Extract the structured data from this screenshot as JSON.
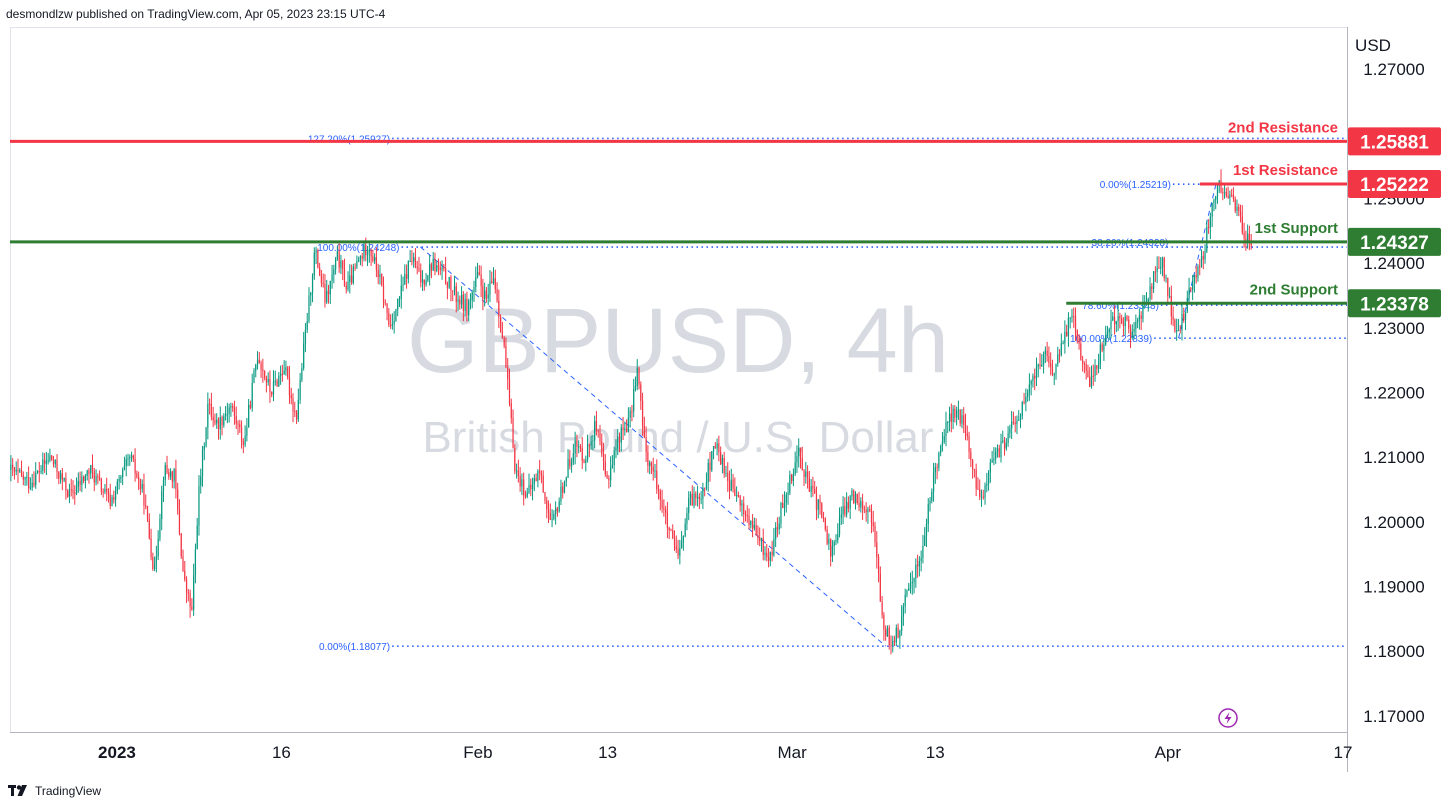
{
  "header": {
    "published": "desmondlzw published on TradingView.com, Apr 05, 2023 23:15 UTC-4"
  },
  "footer": {
    "brand": "TradingView"
  },
  "colors": {
    "up": "#26a69a",
    "up_body": "#089981",
    "down": "#f23645",
    "resistance": "#f23645",
    "support": "#2e7d32",
    "fib": "#2962ff",
    "watermark": "#d1d4dc"
  },
  "chart_data": {
    "type": "candlestick",
    "symbol": "GBPUSD",
    "interval": "4h",
    "watermark_main": "GBPUSD, 4h",
    "watermark_sub": "British Pound / U.S. Dollar",
    "currency": "USD",
    "ylim": [
      1.1675,
      1.2765
    ],
    "y_ticks": [
      {
        "v": 1.27,
        "label": "1.27000"
      },
      {
        "v": 1.26,
        "label": "1.26000"
      },
      {
        "v": 1.25,
        "label": "1.25000"
      },
      {
        "v": 1.24,
        "label": "1.24000"
      },
      {
        "v": 1.23,
        "label": "1.23000"
      },
      {
        "v": 1.22,
        "label": "1.22000"
      },
      {
        "v": 1.21,
        "label": "1.21000"
      },
      {
        "v": 1.2,
        "label": "1.20000"
      },
      {
        "v": 1.19,
        "label": "1.19000"
      },
      {
        "v": 1.18,
        "label": "1.18000"
      },
      {
        "v": 1.17,
        "label": "1.17000"
      }
    ],
    "x_ticks": [
      {
        "label": "2023",
        "pos": 0.08,
        "bold": true
      },
      {
        "label": "16",
        "pos": 0.203
      },
      {
        "label": "Feb",
        "pos": 0.35
      },
      {
        "label": "13",
        "pos": 0.447
      },
      {
        "label": "Mar",
        "pos": 0.585
      },
      {
        "label": "13",
        "pos": 0.692
      },
      {
        "label": "Apr",
        "pos": 0.866
      },
      {
        "label": "17",
        "pos": 0.997
      }
    ],
    "levels": [
      {
        "name": "2nd Resistance",
        "value": 1.25881,
        "tag": "1.25881",
        "type": "resistance",
        "start": 0.0
      },
      {
        "name": "1st Resistance",
        "value": 1.25222,
        "tag": "1.25222",
        "type": "resistance",
        "start": 0.89
      },
      {
        "name": "1st Support",
        "value": 1.24327,
        "tag": "1.24327",
        "type": "support",
        "start": 0.0
      },
      {
        "name": "2nd Support",
        "value": 1.23378,
        "tag": "1.23378",
        "type": "support",
        "start": 0.79
      }
    ],
    "fib_levels": [
      {
        "label": "127.20%(1.25927)",
        "value": 1.25927,
        "start": 0.223
      },
      {
        "label": "100.00%(1.24248)",
        "value": 1.24248,
        "start": 0.23
      },
      {
        "label": "0.00%(1.18077)",
        "value": 1.18077,
        "start": 0.223
      },
      {
        "label": "0.00%(1.25219)",
        "value": 1.25219,
        "start": 0.807
      },
      {
        "label": "38.20%(1.24328)",
        "value": 1.24328,
        "start": 0.805
      },
      {
        "label": "78.60%(1.23348)",
        "value": 1.23348,
        "start": 0.798
      },
      {
        "label": "100.00%(1.22839)",
        "value": 1.22839,
        "start": 0.793
      }
    ],
    "fib_trends": [
      {
        "from": [
          0.307,
          1.24248
        ],
        "to": [
          0.655,
          1.18077
        ]
      },
      {
        "from": [
          0.874,
          1.22839
        ],
        "to": [
          0.902,
          1.25219
        ]
      }
    ],
    "path": [
      [
        0.0,
        1.208
      ],
      [
        0.015,
        1.206
      ],
      [
        0.03,
        1.21
      ],
      [
        0.045,
        1.204
      ],
      [
        0.06,
        1.208
      ],
      [
        0.075,
        1.203
      ],
      [
        0.09,
        1.21
      ],
      [
        0.1,
        1.204
      ],
      [
        0.108,
        1.192
      ],
      [
        0.115,
        1.208
      ],
      [
        0.123,
        1.207
      ],
      [
        0.13,
        1.191
      ],
      [
        0.136,
        1.186
      ],
      [
        0.141,
        1.204
      ],
      [
        0.148,
        1.218
      ],
      [
        0.155,
        1.215
      ],
      [
        0.165,
        1.218
      ],
      [
        0.175,
        1.212
      ],
      [
        0.185,
        1.226
      ],
      [
        0.195,
        1.22
      ],
      [
        0.205,
        1.224
      ],
      [
        0.214,
        1.216
      ],
      [
        0.222,
        1.231
      ],
      [
        0.228,
        1.242
      ],
      [
        0.236,
        1.234
      ],
      [
        0.245,
        1.241
      ],
      [
        0.252,
        1.236
      ],
      [
        0.26,
        1.24
      ],
      [
        0.268,
        1.243
      ],
      [
        0.276,
        1.238
      ],
      [
        0.284,
        1.23
      ],
      [
        0.292,
        1.235
      ],
      [
        0.3,
        1.241
      ],
      [
        0.308,
        1.237
      ],
      [
        0.316,
        1.24
      ],
      [
        0.325,
        1.238
      ],
      [
        0.333,
        1.235
      ],
      [
        0.342,
        1.233
      ],
      [
        0.35,
        1.238
      ],
      [
        0.356,
        1.234
      ],
      [
        0.362,
        1.238
      ],
      [
        0.37,
        1.226
      ],
      [
        0.378,
        1.208
      ],
      [
        0.387,
        1.204
      ],
      [
        0.396,
        1.208
      ],
      [
        0.405,
        1.199
      ],
      [
        0.414,
        1.206
      ],
      [
        0.422,
        1.212
      ],
      [
        0.43,
        1.21
      ],
      [
        0.438,
        1.215
      ],
      [
        0.446,
        1.206
      ],
      [
        0.455,
        1.213
      ],
      [
        0.464,
        1.216
      ],
      [
        0.469,
        1.224
      ],
      [
        0.475,
        1.211
      ],
      [
        0.484,
        1.206
      ],
      [
        0.492,
        1.199
      ],
      [
        0.5,
        1.194
      ],
      [
        0.508,
        1.203
      ],
      [
        0.518,
        1.205
      ],
      [
        0.528,
        1.212
      ],
      [
        0.538,
        1.206
      ],
      [
        0.548,
        1.202
      ],
      [
        0.558,
        1.198
      ],
      [
        0.568,
        1.194
      ],
      [
        0.578,
        1.203
      ],
      [
        0.59,
        1.211
      ],
      [
        0.598,
        1.205
      ],
      [
        0.606,
        1.202
      ],
      [
        0.614,
        1.195
      ],
      [
        0.622,
        1.201
      ],
      [
        0.63,
        1.204
      ],
      [
        0.638,
        1.203
      ],
      [
        0.646,
        1.2
      ],
      [
        0.652,
        1.185
      ],
      [
        0.658,
        1.1815
      ],
      [
        0.665,
        1.183
      ],
      [
        0.672,
        1.19
      ],
      [
        0.682,
        1.195
      ],
      [
        0.69,
        1.206
      ],
      [
        0.698,
        1.214
      ],
      [
        0.706,
        1.217
      ],
      [
        0.714,
        1.215
      ],
      [
        0.72,
        1.208
      ],
      [
        0.726,
        1.203
      ],
      [
        0.732,
        1.208
      ],
      [
        0.74,
        1.211
      ],
      [
        0.748,
        1.214
      ],
      [
        0.756,
        1.217
      ],
      [
        0.765,
        1.222
      ],
      [
        0.773,
        1.226
      ],
      [
        0.78,
        1.223
      ],
      [
        0.787,
        1.227
      ],
      [
        0.794,
        1.233
      ],
      [
        0.8,
        1.227
      ],
      [
        0.807,
        1.221
      ],
      [
        0.815,
        1.226
      ],
      [
        0.823,
        1.231
      ],
      [
        0.831,
        1.232
      ],
      [
        0.838,
        1.229
      ],
      [
        0.846,
        1.232
      ],
      [
        0.854,
        1.237
      ],
      [
        0.862,
        1.24
      ],
      [
        0.868,
        1.233
      ],
      [
        0.873,
        1.2285
      ],
      [
        0.879,
        1.233
      ],
      [
        0.886,
        1.238
      ],
      [
        0.893,
        1.242
      ],
      [
        0.899,
        1.249
      ],
      [
        0.904,
        1.252
      ],
      [
        0.909,
        1.25
      ],
      [
        0.914,
        1.251
      ],
      [
        0.919,
        1.247
      ],
      [
        0.924,
        1.244
      ],
      [
        0.929,
        1.243
      ]
    ]
  }
}
